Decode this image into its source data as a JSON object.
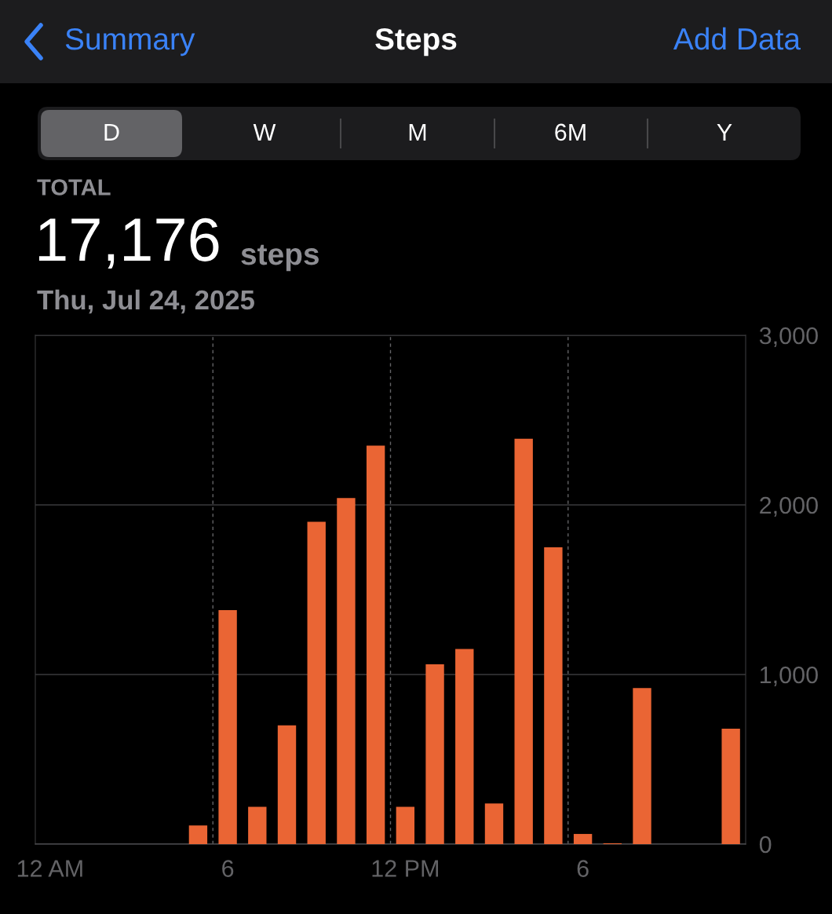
{
  "chart_data": {
    "type": "bar",
    "title": "Steps",
    "annotations": [
      "Summary",
      "Add Data",
      "D",
      "W",
      "M",
      "6M",
      "Y",
      "TOTAL",
      "17,176",
      "steps",
      "Thu, Jul 24, 2025"
    ],
    "categories": [
      "12 AM",
      null,
      null,
      null,
      null,
      null,
      "6",
      null,
      null,
      null,
      null,
      null,
      "12 PM",
      null,
      null,
      null,
      null,
      null,
      "6",
      null,
      null,
      null,
      null,
      null
    ],
    "values": [
      0,
      0,
      0,
      0,
      0,
      110,
      1380,
      220,
      700,
      1900,
      2040,
      2350,
      220,
      1060,
      1150,
      240,
      2390,
      1750,
      60,
      5,
      920,
      0,
      0,
      680
    ],
    "color": "#ea6534",
    "ylim": [
      0,
      3000
    ],
    "yticks": [
      {
        "value": 0,
        "label": "0"
      },
      {
        "value": 1000,
        "label": "1,000"
      },
      {
        "value": 2000,
        "label": "2,000"
      },
      {
        "value": 3000,
        "label": "3,000"
      }
    ],
    "grid": true
  }
}
